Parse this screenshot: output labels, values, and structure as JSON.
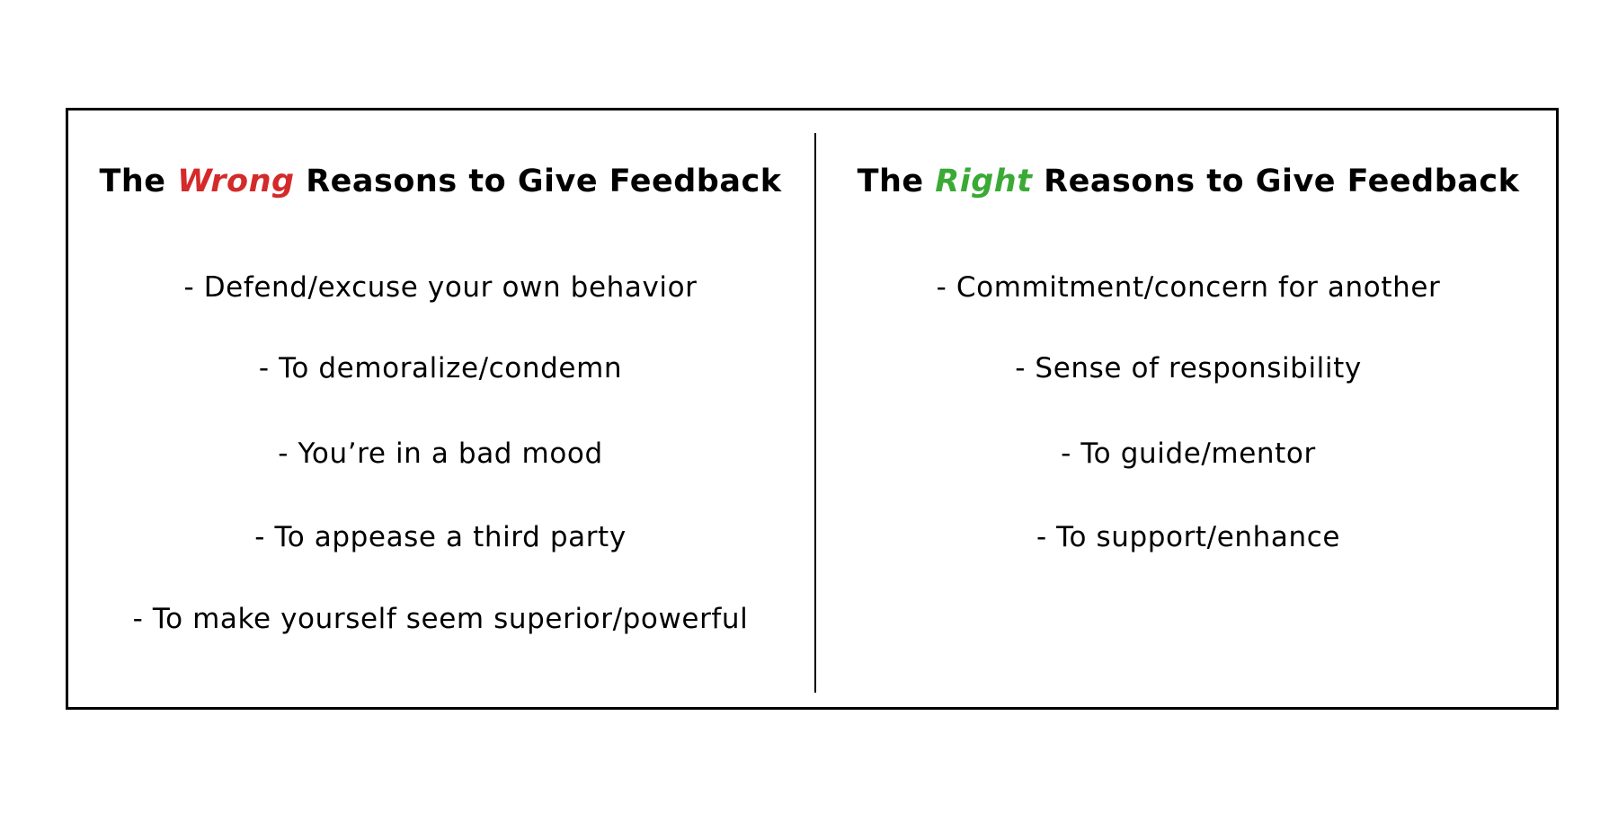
{
  "colors": {
    "wrong": "#d42a2a",
    "right": "#3aaa35",
    "text": "#000000"
  },
  "left": {
    "heading_prefix": "The ",
    "heading_accent": "Wrong",
    "heading_suffix": " Reasons to Give Feedback",
    "items": [
      "- Defend/excuse your own behavior",
      "- To demoralize/condemn",
      "- You’re in a bad mood",
      "- To appease a third party",
      "- To make yourself seem superior/powerful"
    ]
  },
  "right": {
    "heading_prefix": "The ",
    "heading_accent": "Right",
    "heading_suffix": " Reasons to Give Feedback",
    "items": [
      "- Commitment/concern for another",
      "- Sense of responsibility",
      "- To guide/mentor",
      "- To support/enhance"
    ]
  }
}
